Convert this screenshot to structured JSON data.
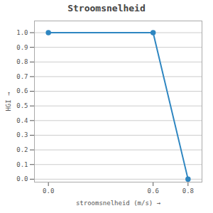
{
  "chart_data": {
    "type": "line",
    "title": "Stroomsnelheid",
    "xlabel": "stroomsnelheid (m/s)",
    "ylabel": "HGI",
    "x": [
      0,
      0.6,
      0.8
    ],
    "values": [
      1.0,
      1.0,
      0.0
    ],
    "color": "#2e86c1",
    "marker": "circle",
    "xlim": [
      -0.08,
      0.88
    ],
    "ylim": [
      -0.02,
      1.08
    ],
    "xticks": [
      {
        "value": 0,
        "label": "0.0"
      },
      0.6,
      0.8
    ],
    "yticks": [
      {
        "value": 0.0,
        "label": "0.0"
      },
      0.1,
      0.2,
      0.3,
      0.4,
      0.5,
      0.6,
      0.7,
      0.8,
      0.9,
      {
        "value": 1.0,
        "label": "1.0"
      }
    ],
    "grid": "y"
  }
}
